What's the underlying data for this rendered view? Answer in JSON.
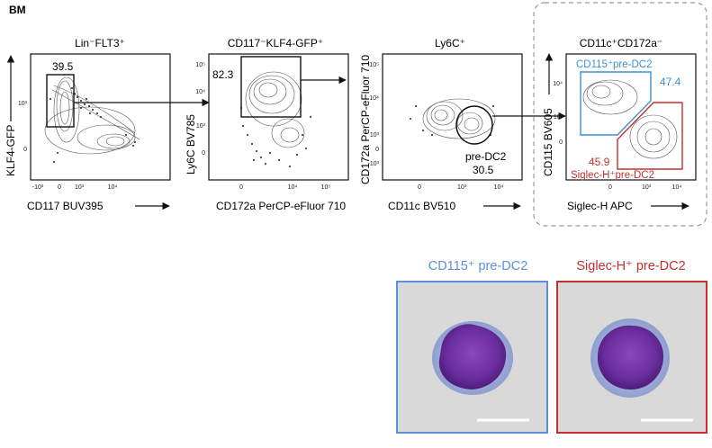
{
  "panel_label": "BM",
  "facs": [
    {
      "title": "Lin⁻FLT3⁺",
      "xlabel": "CD117 BUV395",
      "ylabel": "KLF4-GFP",
      "xticks": [
        "-10³",
        "0",
        "10³",
        "10⁴"
      ],
      "yticks": [
        "10³",
        "0"
      ],
      "gates": [
        {
          "label": "",
          "value": "39.5"
        }
      ]
    },
    {
      "title": "CD117⁻KLF4-GFP⁺",
      "xlabel": "CD172a PerCP-eFluor 710",
      "ylabel": "Ly6C BV785",
      "xticks": [
        "0",
        "10⁴",
        "10⁵"
      ],
      "yticks": [
        "10⁵",
        "10⁴",
        "10³",
        "0"
      ],
      "gates": [
        {
          "label": "",
          "value": "82.3"
        }
      ]
    },
    {
      "title": "Ly6C⁺",
      "xlabel": "CD11c BV510",
      "ylabel": "CD172a PerCP-eFluor 710",
      "xticks": [
        "0",
        "10³",
        "10⁴"
      ],
      "yticks": [
        "10⁵",
        "10⁴",
        "10³",
        "0",
        "-10³"
      ],
      "gates": [
        {
          "label": "pre-DC2",
          "value": "30.5"
        }
      ]
    },
    {
      "title": "CD11c⁺CD172a⁻",
      "xlabel": "Siglec-H APC",
      "ylabel": "CD115 BV605",
      "xticks": [
        "0",
        "10³",
        "10⁴"
      ],
      "yticks": [
        "10⁴",
        "10³",
        "0"
      ],
      "gates": [
        {
          "label": "CD115⁺pre-DC2",
          "value": "47.4",
          "color": "#3f8fd2"
        },
        {
          "label": "Siglec-H⁺pre-DC2",
          "value": "45.9",
          "color": "#c0302e"
        }
      ]
    }
  ],
  "cells": [
    {
      "label": "CD115⁺ pre-DC2",
      "color": "#5f8fd8"
    },
    {
      "label": "Siglec-H⁺ pre-DC2",
      "color": "#c2312f"
    }
  ],
  "colors": {
    "axis": "#111111",
    "contour": "#555555",
    "dashed_box": "#9a9a9a",
    "cell_background": "#d9d9d9",
    "nucleus": "#6a2d9e",
    "cytoplasm": "#aeb7d8",
    "scale_bar": "#ffffff"
  }
}
